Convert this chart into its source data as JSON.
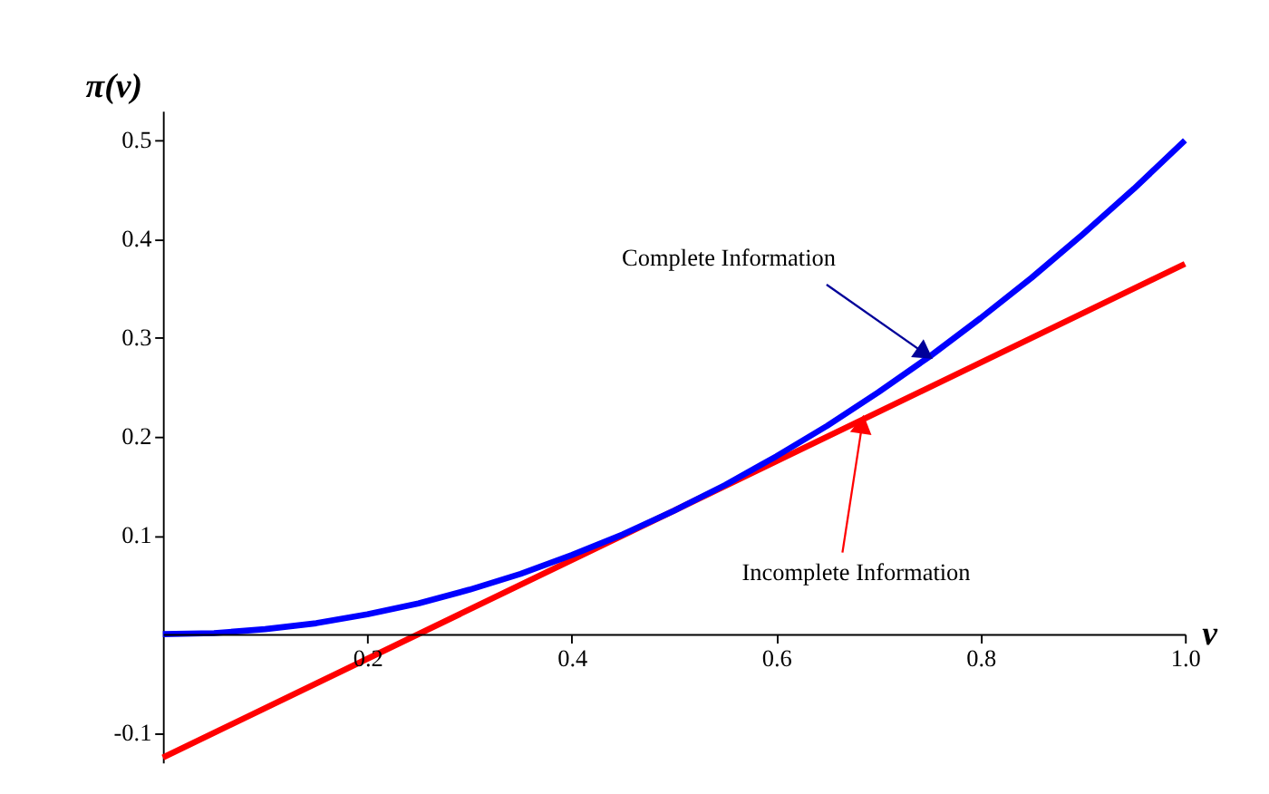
{
  "chart_data": {
    "type": "line",
    "xlabel": "ν",
    "ylabel": "π(ν)",
    "series": [
      {
        "color": "#0000ff",
        "x": [
          0,
          0.05,
          0.1,
          0.15,
          0.2,
          0.25,
          0.3,
          0.35,
          0.4,
          0.45,
          0.5,
          0.55,
          0.6,
          0.65,
          0.7,
          0.75,
          0.8,
          0.85,
          0.9,
          0.95,
          1.0
        ],
        "values": [
          0,
          0.001,
          0.005,
          0.011,
          0.02,
          0.031,
          0.045,
          0.061,
          0.08,
          0.101,
          0.125,
          0.151,
          0.18,
          0.211,
          0.245,
          0.281,
          0.32,
          0.361,
          0.405,
          0.451,
          0.5
        ]
      },
      {
        "color": "#ff0000",
        "x": [
          0,
          0.5,
          1.0
        ],
        "values": [
          -0.125,
          0.125,
          0.375
        ]
      }
    ],
    "annotations": [
      {
        "text": "Complete Information",
        "x": 0.75,
        "y": 0.281
      },
      {
        "text": "Incomplete Information",
        "x": 0.685,
        "y": 0.218
      }
    ],
    "xlim": [
      0,
      1.0
    ],
    "ylim": [
      -0.13,
      0.53
    ],
    "xticks": [
      0.2,
      0.4,
      0.6,
      0.8,
      {
        "value": 1.0,
        "label": "1.0"
      }
    ],
    "yticks": [
      {
        "value": -0.1,
        "label": "-0.1"
      },
      0.1,
      0.2,
      0.3,
      0.4,
      0.5
    ],
    "grid": false,
    "marker": "none",
    "line_style": "solid"
  }
}
